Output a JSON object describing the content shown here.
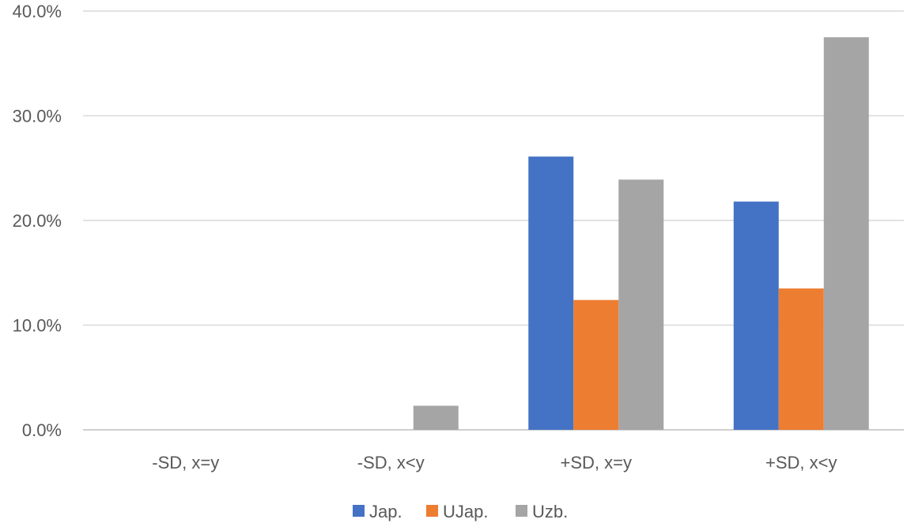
{
  "chart_data": {
    "type": "bar",
    "categories": [
      "-SD, x=y",
      "-SD, x<y",
      "+SD, x=y",
      "+SD, x<y"
    ],
    "series": [
      {
        "name": "Jap.",
        "color": "#4472C4",
        "values": [
          0.0,
          0.0,
          26.1,
          21.8
        ]
      },
      {
        "name": "UJap.",
        "color": "#ED7D31",
        "values": [
          0.0,
          0.0,
          12.4,
          13.5
        ]
      },
      {
        "name": "Uzb.",
        "color": "#A5A5A5",
        "values": [
          0.0,
          2.3,
          23.9,
          37.5
        ]
      }
    ],
    "ylim": [
      0,
      40
    ],
    "yticks": [
      "0.0%",
      "10.0%",
      "20.0%",
      "30.0%",
      "40.0%"
    ],
    "grid": true,
    "legend_position": "bottom"
  }
}
